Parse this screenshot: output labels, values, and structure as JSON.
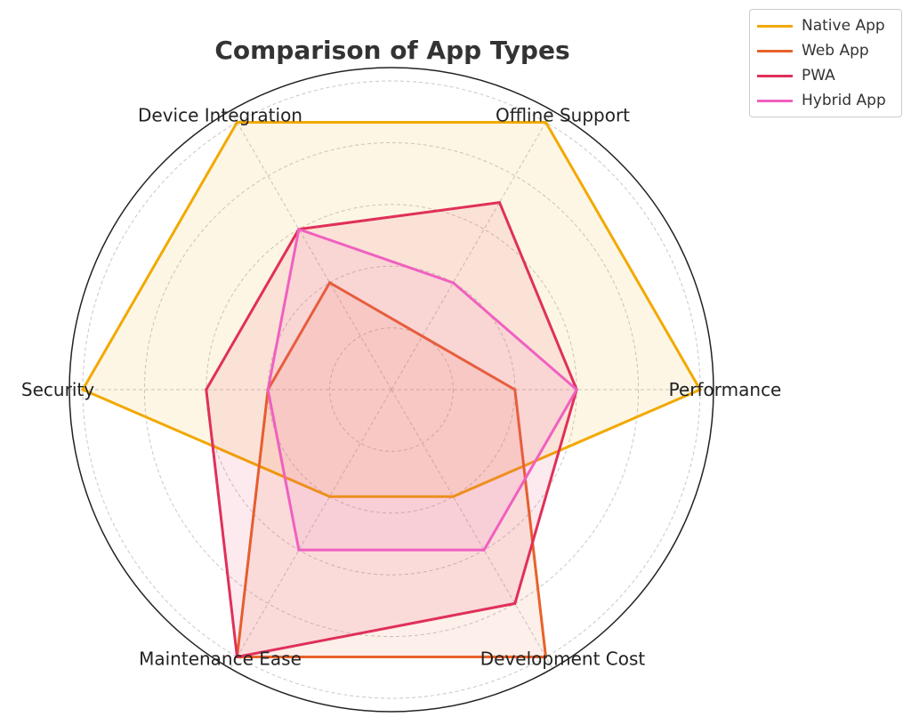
{
  "chart_data": {
    "type": "radar",
    "title": "Comparison of App Types",
    "categories": [
      "Performance",
      "Offline Support",
      "Device Integration",
      "Security",
      "Maintenance Ease",
      "Development Cost"
    ],
    "rlim": [
      0,
      10
    ],
    "grid": true,
    "legend_position": "top-right",
    "series": [
      {
        "name": "Native App",
        "color": "#F2A900",
        "values": [
          10,
          10,
          10,
          10,
          4,
          4
        ]
      },
      {
        "name": "Web App",
        "color": "#E8622A",
        "values": [
          4,
          2,
          4,
          4,
          10,
          10
        ]
      },
      {
        "name": "PWA",
        "color": "#E0305A",
        "values": [
          6,
          7,
          6,
          6,
          10,
          8
        ]
      },
      {
        "name": "Hybrid App",
        "color": "#F060C0",
        "values": [
          6,
          4,
          6,
          4,
          6,
          6
        ]
      }
    ]
  }
}
